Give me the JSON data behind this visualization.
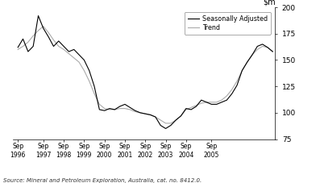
{
  "title": "",
  "source": "Source: Mineral and Petroleum Exploration, Australia, cat. no. 8412.0.",
  "ylim": [
    75,
    200
  ],
  "yticks": [
    75,
    100,
    125,
    150,
    175,
    200
  ],
  "legend_labels": [
    "Seasonally Adjusted",
    "Trend"
  ],
  "seasonally_adjusted": [
    162,
    170,
    158,
    163,
    192,
    180,
    172,
    163,
    168,
    163,
    158,
    160,
    155,
    150,
    140,
    125,
    103,
    102,
    104,
    103,
    106,
    108,
    105,
    102,
    100,
    99,
    98,
    96,
    88,
    85,
    88,
    93,
    97,
    104,
    103,
    106,
    112,
    110,
    108,
    108,
    110,
    112,
    118,
    126,
    140,
    148,
    155,
    163,
    165,
    162,
    158
  ],
  "trend": [
    160,
    163,
    167,
    173,
    178,
    182,
    176,
    169,
    163,
    160,
    156,
    152,
    148,
    140,
    130,
    118,
    108,
    104,
    103,
    103,
    104,
    104,
    103,
    101,
    100,
    99,
    98,
    96,
    93,
    90,
    90,
    93,
    97,
    103,
    105,
    107,
    109,
    110,
    110,
    110,
    112,
    116,
    122,
    130,
    140,
    148,
    155,
    160,
    163,
    162,
    158
  ],
  "n_points": 51,
  "xtick_positions": [
    0,
    5,
    9,
    13,
    17,
    21,
    25,
    29,
    33,
    38
  ],
  "xtick_labels": [
    "Sep\n1996",
    "Sep\n1997",
    "Sep\n1998",
    "Sep\n1999",
    "Sep\n2000",
    "Sep\n2001",
    "Sep\n2002",
    "Sep\n2003",
    "Sep\n2004",
    "Sep\n2005"
  ],
  "sa_color": "#000000",
  "trend_color": "#aaaaaa",
  "line_width": 0.8,
  "background_color": "#ffffff"
}
